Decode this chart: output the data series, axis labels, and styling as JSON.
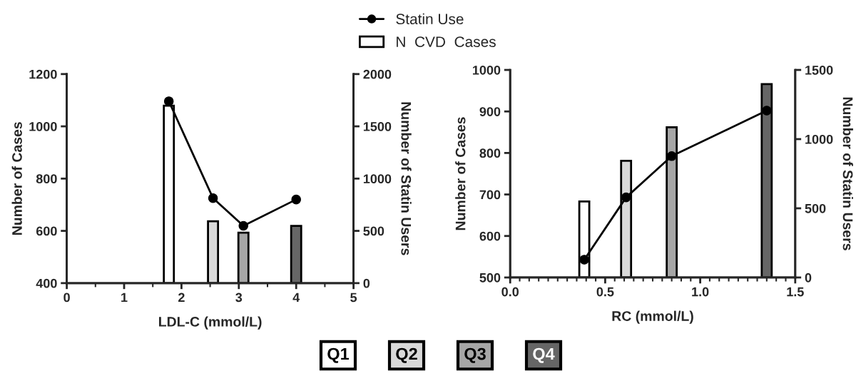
{
  "chart_data": [
    {
      "type": "bar",
      "xlabel": "LDL-C (mmol/L)",
      "ylabel": "Number of Cases",
      "y2label": "Number of Statin Users",
      "xlim": [
        0,
        5
      ],
      "xticks": [
        0,
        {
          "value": 0.5,
          "label": null
        },
        1,
        {
          "value": 1.5,
          "label": null
        },
        2,
        {
          "value": 2.5,
          "label": null
        },
        3,
        {
          "value": 3.5,
          "label": null
        },
        4,
        {
          "value": 4.5,
          "label": null
        },
        5
      ],
      "ylim": [
        400,
        1200
      ],
      "yticks": [
        400,
        600,
        800,
        1000,
        1200
      ],
      "y2lim": [
        0,
        2000
      ],
      "y2ticks": [
        0,
        500,
        1000,
        1500,
        2000
      ],
      "legend": "top",
      "grid": false,
      "series": [
        {
          "name": "N  CVD  Cases",
          "x": [
            1.78,
            2.55,
            3.08,
            4.0
          ],
          "values": [
            1079,
            637,
            593,
            619
          ],
          "colors": [
            "#ffffff",
            "#d9d9d9",
            "#a6a6a6",
            "#666666"
          ]
        },
        {
          "type": "line",
          "name": "Statin Use",
          "axis": "y2",
          "color": "#000000",
          "marker": "circle",
          "x": [
            1.78,
            2.55,
            3.08,
            4.0
          ],
          "values": [
            1740,
            813,
            548,
            800
          ]
        }
      ],
      "annotations": [
        "Q1",
        "Q2",
        "Q3",
        "Q4"
      ]
    },
    {
      "type": "bar",
      "xlabel": "RC (mmol/L)",
      "ylabel": "Number of Cases",
      "y2label": "Number of Statin Users",
      "xlim": [
        0,
        1.5
      ],
      "xticks": [
        {
          "value": 0.0,
          "label": "0.0"
        },
        {
          "value": 0.05,
          "label": null
        },
        {
          "value": 0.1,
          "label": null
        },
        {
          "value": 0.15,
          "label": null
        },
        {
          "value": 0.2,
          "label": null
        },
        {
          "value": 0.25,
          "label": null
        },
        {
          "value": 0.3,
          "label": null
        },
        {
          "value": 0.35,
          "label": null
        },
        {
          "value": 0.4,
          "label": null
        },
        {
          "value": 0.45,
          "label": null
        },
        0.5,
        {
          "value": 0.55,
          "label": null
        },
        {
          "value": 0.6,
          "label": null
        },
        {
          "value": 0.65,
          "label": null
        },
        {
          "value": 0.7,
          "label": null
        },
        {
          "value": 0.75,
          "label": null
        },
        {
          "value": 0.8,
          "label": null
        },
        {
          "value": 0.85,
          "label": null
        },
        {
          "value": 0.9,
          "label": null
        },
        {
          "value": 0.95,
          "label": null
        },
        {
          "value": 1.0,
          "label": "1.0"
        },
        {
          "value": 1.05,
          "label": null
        },
        {
          "value": 1.1,
          "label": null
        },
        {
          "value": 1.15,
          "label": null
        },
        {
          "value": 1.2,
          "label": null
        },
        {
          "value": 1.25,
          "label": null
        },
        {
          "value": 1.3,
          "label": null
        },
        {
          "value": 1.35,
          "label": null
        },
        {
          "value": 1.4,
          "label": null
        },
        {
          "value": 1.45,
          "label": null
        },
        1.5
      ],
      "ylim": [
        500,
        1000
      ],
      "yticks": [
        500,
        600,
        700,
        800,
        900,
        1000
      ],
      "y2lim": [
        0,
        1500
      ],
      "y2ticks": [
        0,
        500,
        1000,
        1500
      ],
      "grid": false,
      "series": [
        {
          "x": [
            0.39,
            0.61,
            0.85,
            1.35
          ],
          "values": [
            683,
            781,
            862,
            966
          ],
          "colors": [
            "#ffffff",
            "#d9d9d9",
            "#a6a6a6",
            "#666666"
          ]
        },
        {
          "type": "line",
          "axis": "y2",
          "color": "#000000",
          "marker": "circle",
          "x": [
            0.39,
            0.61,
            0.85,
            1.35
          ],
          "values": [
            129,
            579,
            877,
            1206
          ]
        }
      ]
    }
  ]
}
